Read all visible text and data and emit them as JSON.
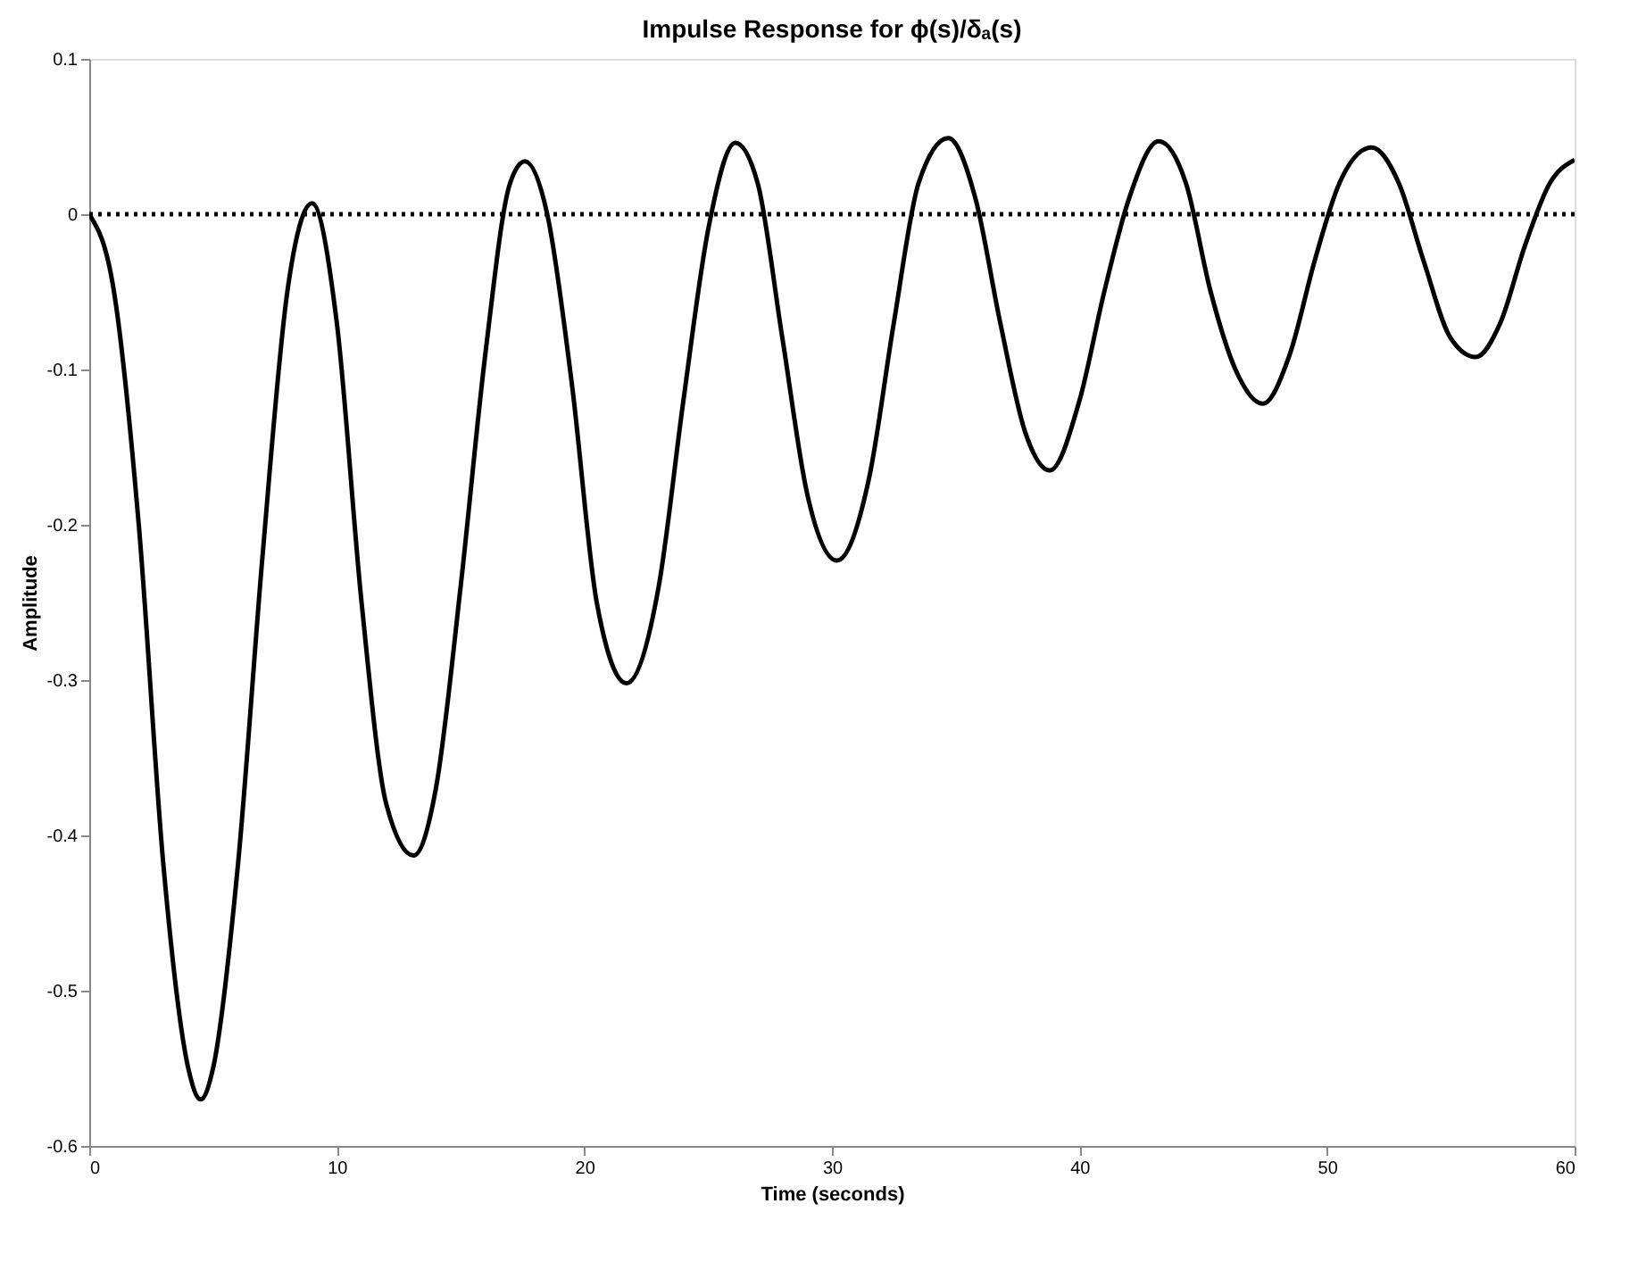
{
  "chart_data": {
    "type": "line",
    "title": "Impulse Response for ϕ(s)/δₐ(s)",
    "xlabel": "Time (seconds)",
    "ylabel": "Amplitude",
    "x": [
      0,
      1,
      2,
      3,
      4,
      4.5,
      5,
      6,
      7,
      8,
      9,
      10,
      11,
      12,
      13.1,
      14,
      15,
      16,
      17,
      17.6,
      18.5,
      19.5,
      20.5,
      21.7,
      23,
      24,
      25,
      26.1,
      27,
      28,
      29,
      30.2,
      31.5,
      32.5,
      33.5,
      34.7,
      35.8,
      36.8,
      37.8,
      38.8,
      40,
      41,
      42,
      43.2,
      44.3,
      45.3,
      46.3,
      47.4,
      48.5,
      49.5,
      50.5,
      51.8,
      52.9,
      53.9,
      55,
      56,
      57,
      58,
      59,
      60
    ],
    "series": [
      {
        "color": "#000000",
        "values": [
          0,
          -0.05,
          -0.2,
          -0.42,
          -0.55,
          -0.57,
          -0.55,
          -0.42,
          -0.22,
          -0.05,
          0.007,
          -0.07,
          -0.25,
          -0.38,
          -0.413,
          -0.37,
          -0.24,
          -0.09,
          0.02,
          0.034,
          0.0,
          -0.11,
          -0.25,
          -0.302,
          -0.24,
          -0.12,
          -0.01,
          0.046,
          0.02,
          -0.08,
          -0.18,
          -0.223,
          -0.17,
          -0.07,
          0.02,
          0.049,
          0.01,
          -0.07,
          -0.14,
          -0.165,
          -0.12,
          -0.05,
          0.01,
          0.047,
          0.02,
          -0.05,
          -0.1,
          -0.122,
          -0.09,
          -0.03,
          0.02,
          0.043,
          0.02,
          -0.03,
          -0.08,
          -0.092,
          -0.07,
          -0.02,
          0.02,
          0.035
        ]
      }
    ],
    "xlim": [
      0,
      60
    ],
    "xticks": [
      0,
      10,
      20,
      30,
      40,
      50,
      60
    ],
    "ylim": [
      -0.6,
      0.1
    ],
    "yticks": [
      -0.6,
      -0.5,
      -0.4,
      -0.3,
      -0.2,
      -0.1,
      0,
      0.1
    ],
    "ref_lines": [
      {
        "axis": "y",
        "value": 0,
        "color": "#000000",
        "line_style": "dotted"
      }
    ],
    "grid": false,
    "marker": "none",
    "line_style": "solid"
  }
}
